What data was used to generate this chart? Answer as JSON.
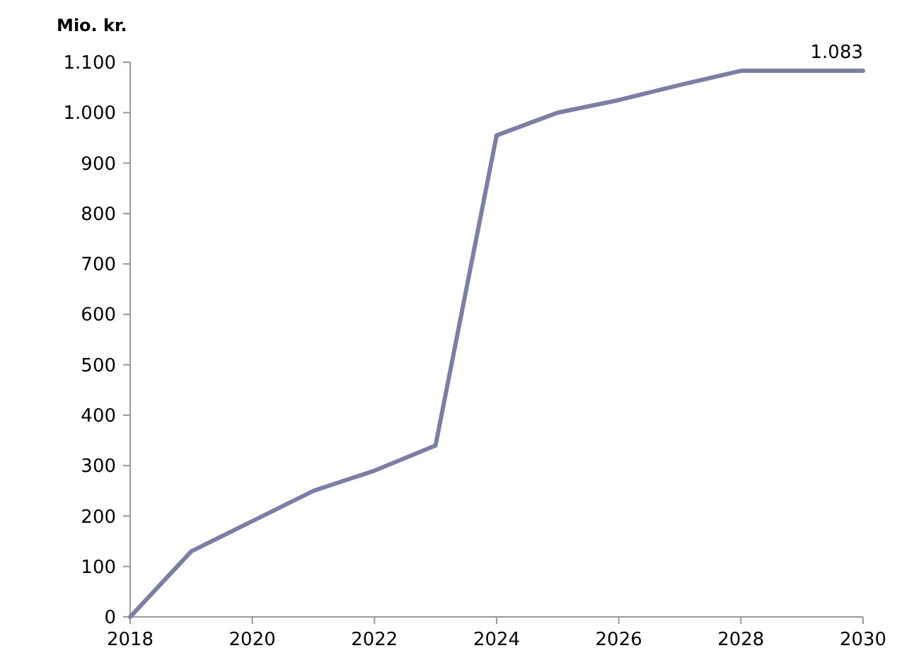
{
  "chart_data": {
    "type": "line",
    "ylabel": "Mio. kr.",
    "x": [
      2018,
      2019,
      2020,
      2021,
      2022,
      2023,
      2024,
      2025,
      2026,
      2027,
      2028,
      2029,
      2030
    ],
    "series": [
      {
        "color": "#7b7fa8",
        "values": [
          0,
          130,
          190,
          250,
          290,
          340,
          955,
          1000,
          1025,
          1055,
          1083,
          1083,
          1083
        ]
      }
    ],
    "xlim": [
      2018,
      2030
    ],
    "xticks": [
      2018,
      2020,
      2022,
      2024,
      2026,
      2028,
      2030
    ],
    "ylim": [
      0,
      1100
    ],
    "yticks": [
      0,
      100,
      200,
      300,
      400,
      500,
      600,
      700,
      800,
      900,
      {
        "value": 1000,
        "label": "1.000"
      },
      {
        "value": 1100,
        "label": "1.100"
      }
    ],
    "annotations": [
      {
        "text": "1.083",
        "x": 2030,
        "y": 1083
      }
    ],
    "grid": false,
    "marker": "none",
    "line_style": "solid"
  }
}
